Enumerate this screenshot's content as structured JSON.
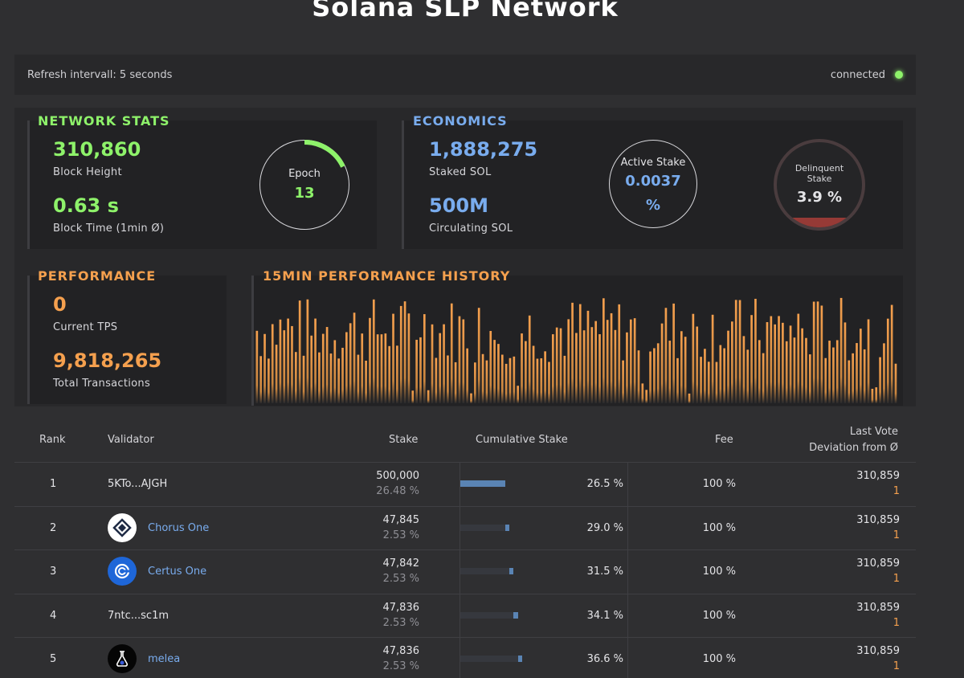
{
  "title": "Solana SLP Network",
  "topbar": {
    "refresh": "Refresh intervall: 5 seconds",
    "status": "connected"
  },
  "network": {
    "heading": "NETWORK STATS",
    "block_height": "310,860",
    "block_height_label": "Block Height",
    "block_time": "0.63 s",
    "block_time_label": "Block Time (1min Ø)",
    "epoch_label": "Epoch",
    "epoch": "13",
    "epoch_progress": 0.18
  },
  "economics": {
    "heading": "ECONOMICS",
    "staked": "1,888,275",
    "staked_label": "Staked SOL",
    "circulating": "500M",
    "circulating_label": "Circulating SOL",
    "active_label": "Active Stake",
    "active_value": "0.0037",
    "active_unit": "%",
    "delinquent_label": "Delinquent Stake",
    "delinquent_value": "3.9 %",
    "delinquent_fraction": 0.039
  },
  "performance": {
    "heading": "PERFORMANCE",
    "tps": "0",
    "tps_label": "Current TPS",
    "total": "9,818,265",
    "total_label": "Total Transactions"
  },
  "history": {
    "heading": "15MIN PERFORMANCE HISTORY",
    "bar_color": "#f5a04e"
  },
  "table": {
    "headers": {
      "rank": "Rank",
      "validator": "Validator",
      "stake": "Stake",
      "cumulative": "Cumulative Stake",
      "fee": "Fee",
      "last_vote_1": "Last Vote",
      "last_vote_2": "Deviation from Ø"
    },
    "rows": [
      {
        "rank": "1",
        "name": "5KTo...AJGH",
        "logo": "",
        "stake": "500,000",
        "pct": "26.48 %",
        "cum": "26.5 %",
        "cum_prev": 0,
        "cum_val": 0.265,
        "fee": "100 %",
        "vote": "310,859",
        "dev": "1"
      },
      {
        "rank": "2",
        "name": "Chorus One",
        "logo": "chorus-one-logo",
        "stake": "47,845",
        "pct": "2.53 %",
        "cum": "29.0 %",
        "cum_prev": 0.265,
        "cum_val": 0.29,
        "fee": "100 %",
        "vote": "310,859",
        "dev": "1"
      },
      {
        "rank": "3",
        "name": "Certus One",
        "logo": "certus-one-logo",
        "stake": "47,842",
        "pct": "2.53 %",
        "cum": "31.5 %",
        "cum_prev": 0.29,
        "cum_val": 0.315,
        "fee": "100 %",
        "vote": "310,859",
        "dev": "1"
      },
      {
        "rank": "4",
        "name": "7ntc...sc1m",
        "logo": "",
        "stake": "47,836",
        "pct": "2.53 %",
        "cum": "34.1 %",
        "cum_prev": 0.315,
        "cum_val": 0.341,
        "fee": "100 %",
        "vote": "310,859",
        "dev": "1"
      },
      {
        "rank": "5",
        "name": "melea",
        "logo": "melea-logo",
        "stake": "47,836",
        "pct": "2.53 %",
        "cum": "36.6 %",
        "cum_prev": 0.341,
        "cum_val": 0.366,
        "fee": "100 %",
        "vote": "310,859",
        "dev": "1"
      }
    ]
  }
}
